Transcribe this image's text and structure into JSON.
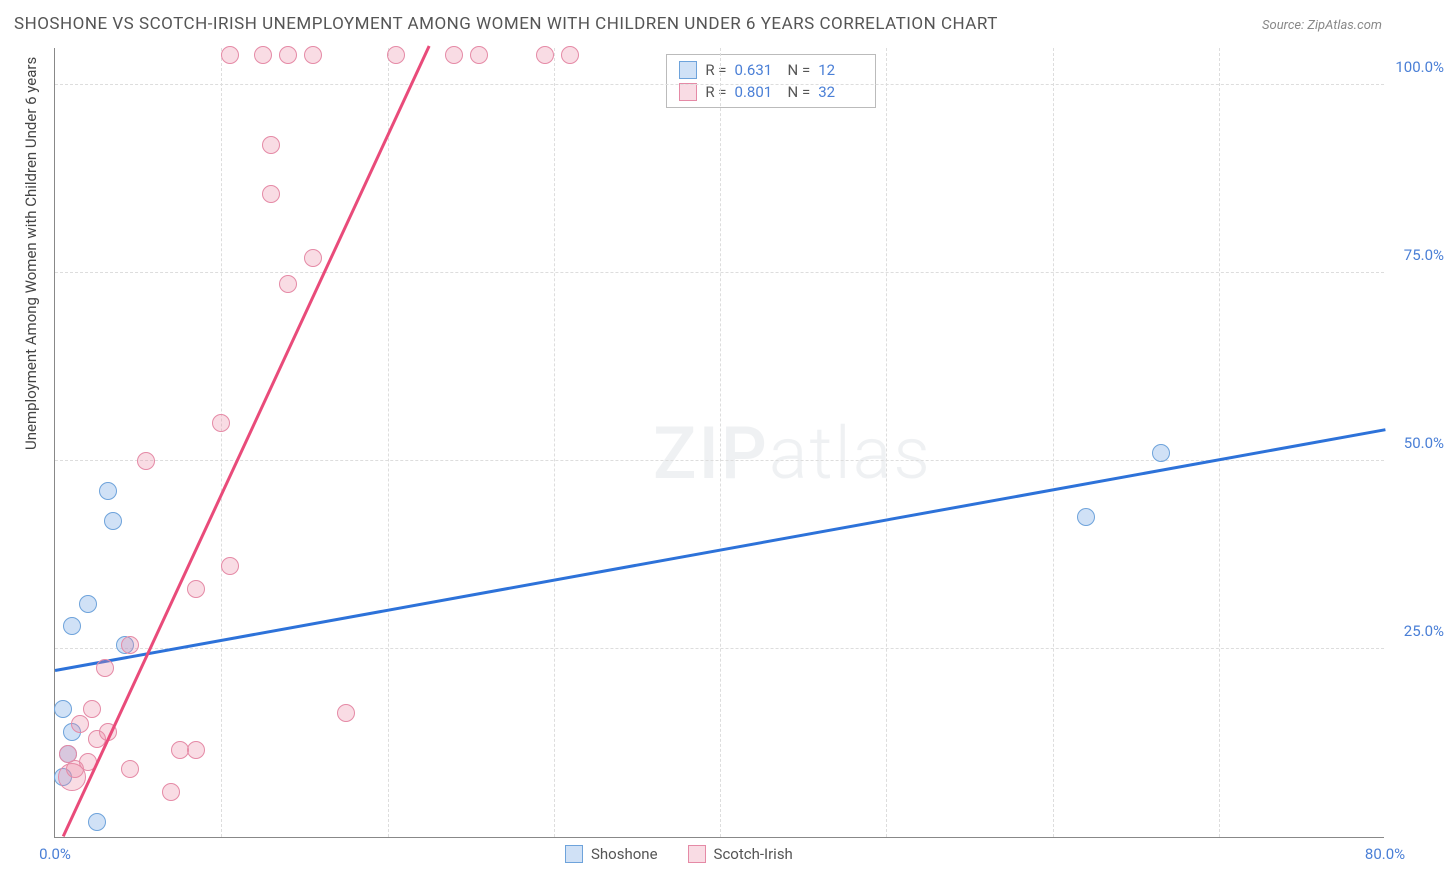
{
  "title": "SHOSHONE VS SCOTCH-IRISH UNEMPLOYMENT AMONG WOMEN WITH CHILDREN UNDER 6 YEARS CORRELATION CHART",
  "source": "Source: ZipAtlas.com",
  "y_axis_label": "Unemployment Among Women with Children Under 6 years",
  "watermark_bold": "ZIP",
  "watermark_light": "atlas",
  "chart": {
    "type": "scatter",
    "xlim": [
      0,
      80
    ],
    "ylim": [
      0,
      105
    ],
    "x_ticks": [
      0,
      80
    ],
    "x_tick_labels": [
      "0.0%",
      "80.0%"
    ],
    "y_ticks": [
      25,
      50,
      75,
      100
    ],
    "y_tick_labels": [
      "25.0%",
      "50.0%",
      "75.0%",
      "100.0%"
    ],
    "x_minor_gridlines": [
      10,
      20,
      30,
      40,
      50,
      60,
      70
    ],
    "background_color": "#ffffff",
    "grid_color": "#dddddd",
    "axis_color": "#888888",
    "tick_label_color": "#4a7fd6",
    "series": [
      {
        "name": "Shoshone",
        "fill_color": "rgba(120,170,230,0.35)",
        "stroke_color": "#6ea3db",
        "line_color": "#2d72d9",
        "marker_radius": 9,
        "R": "0.631",
        "N": "12",
        "points": [
          {
            "x": 0.5,
            "y": 17
          },
          {
            "x": 0.8,
            "y": 11
          },
          {
            "x": 0.5,
            "y": 8
          },
          {
            "x": 2.5,
            "y": 2
          },
          {
            "x": 1.0,
            "y": 14
          },
          {
            "x": 1.0,
            "y": 28
          },
          {
            "x": 2.0,
            "y": 31
          },
          {
            "x": 3.5,
            "y": 42
          },
          {
            "x": 3.2,
            "y": 46
          },
          {
            "x": 4.2,
            "y": 25.5
          },
          {
            "x": 62,
            "y": 42.5
          },
          {
            "x": 66.5,
            "y": 51
          }
        ],
        "trend": {
          "x1": 0,
          "y1": 22,
          "x2": 80,
          "y2": 54
        }
      },
      {
        "name": "Scotch-Irish",
        "fill_color": "rgba(235,140,165,0.3)",
        "stroke_color": "#e58aa6",
        "line_color": "#e94b7a",
        "marker_radius": 9,
        "R": "0.801",
        "N": "32",
        "points": [
          {
            "x": 1.0,
            "y": 8,
            "r": 14
          },
          {
            "x": 1.2,
            "y": 9
          },
          {
            "x": 0.8,
            "y": 11
          },
          {
            "x": 2.0,
            "y": 10
          },
          {
            "x": 2.5,
            "y": 13
          },
          {
            "x": 3.2,
            "y": 14
          },
          {
            "x": 1.5,
            "y": 15
          },
          {
            "x": 2.2,
            "y": 17
          },
          {
            "x": 4.5,
            "y": 9
          },
          {
            "x": 7.5,
            "y": 11.5
          },
          {
            "x": 8.5,
            "y": 11.5
          },
          {
            "x": 7.0,
            "y": 6
          },
          {
            "x": 3.0,
            "y": 22.5
          },
          {
            "x": 4.5,
            "y": 25.5
          },
          {
            "x": 17.5,
            "y": 16.5
          },
          {
            "x": 8.5,
            "y": 33
          },
          {
            "x": 10.5,
            "y": 36
          },
          {
            "x": 5.5,
            "y": 50
          },
          {
            "x": 10.0,
            "y": 55
          },
          {
            "x": 14.0,
            "y": 73.5
          },
          {
            "x": 15.5,
            "y": 77
          },
          {
            "x": 13.0,
            "y": 85.5
          },
          {
            "x": 13.0,
            "y": 92
          },
          {
            "x": 10.5,
            "y": 104
          },
          {
            "x": 12.5,
            "y": 104
          },
          {
            "x": 14.0,
            "y": 104
          },
          {
            "x": 15.5,
            "y": 104
          },
          {
            "x": 20.5,
            "y": 104
          },
          {
            "x": 24.0,
            "y": 104
          },
          {
            "x": 25.5,
            "y": 104
          },
          {
            "x": 29.5,
            "y": 104
          },
          {
            "x": 31.0,
            "y": 104
          }
        ],
        "trend": {
          "x1": 0.5,
          "y1": 0,
          "x2": 22.5,
          "y2": 105
        }
      }
    ],
    "stats_box": {
      "border_color": "#bbbbbb",
      "R_label": "R =",
      "N_label": "N ="
    },
    "legend": {
      "items": [
        "Shoshone",
        "Scotch-Irish"
      ]
    }
  }
}
